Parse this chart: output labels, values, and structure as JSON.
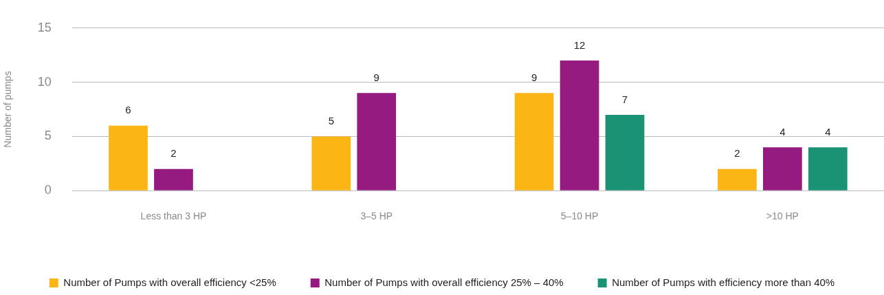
{
  "chart_data": {
    "type": "bar",
    "ylabel": "Number of pumps",
    "categories": [
      "Less than 3 HP",
      "3–5 HP",
      "5–10 HP",
      ">10 HP"
    ],
    "series": [
      {
        "name": "Number of Pumps with overall efficiency <25%",
        "color": "#fbb615",
        "values": [
          6,
          5,
          9,
          2
        ]
      },
      {
        "name": "Number of Pumps with overall efficiency 25% – 40%",
        "color": "#951b81",
        "values": [
          2,
          9,
          12,
          4
        ]
      },
      {
        "name": "Number of Pumps with efficiency more than 40%",
        "color": "#1a9274",
        "values": [
          null,
          null,
          7,
          4
        ]
      }
    ],
    "ylim": [
      0,
      15
    ],
    "yticks": [
      0,
      5,
      10,
      15
    ],
    "grid": "y",
    "legend": "bottom",
    "data_labels": true
  }
}
